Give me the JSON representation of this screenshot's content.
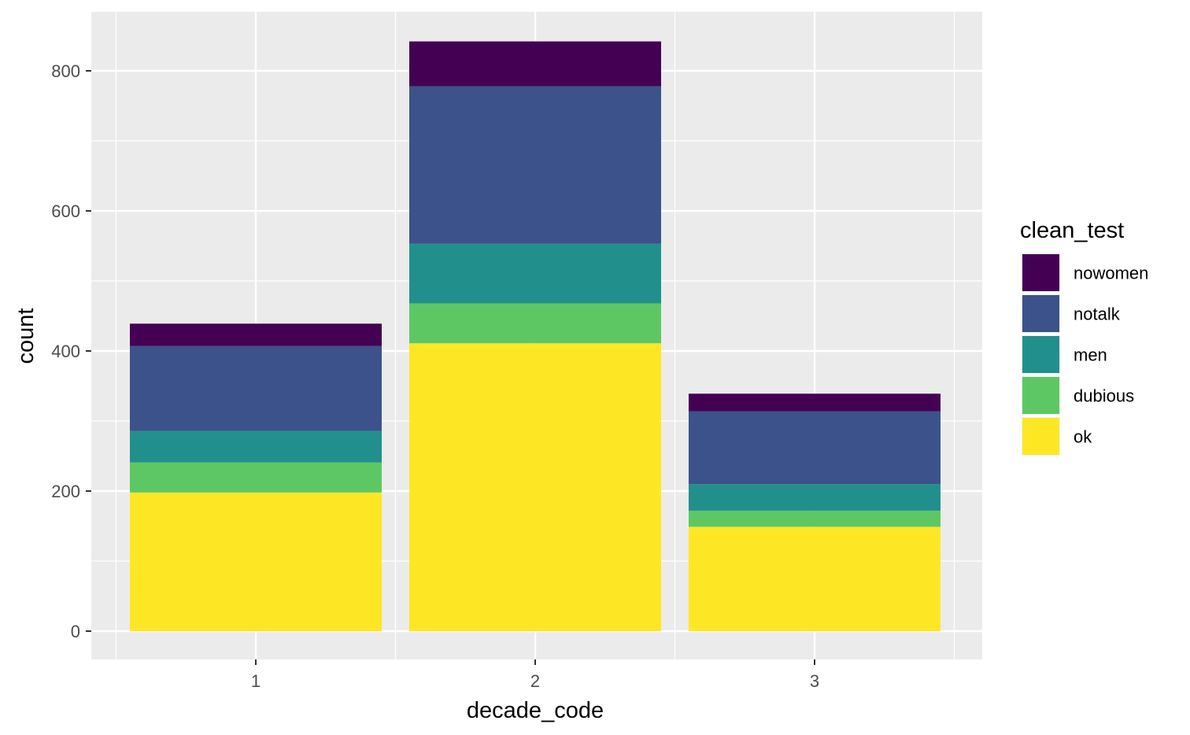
{
  "chart_data": {
    "type": "bar",
    "stacked": true,
    "xlabel": "decade_code",
    "ylabel": "count",
    "categories": [
      "1",
      "2",
      "3"
    ],
    "ylim": [
      0,
      880
    ],
    "y_ticks": [
      0,
      200,
      400,
      600,
      800
    ],
    "grid": true,
    "legend": {
      "title": "clean_test",
      "position": "right"
    },
    "series": [
      {
        "name": "ok",
        "color": "#FDE725",
        "values": [
          198,
          411,
          149
        ]
      },
      {
        "name": "dubious",
        "color": "#5DC863",
        "values": [
          43,
          57,
          23
        ]
      },
      {
        "name": "men",
        "color": "#21908C",
        "values": [
          45,
          85,
          38
        ]
      },
      {
        "name": "notalk",
        "color": "#3B528B",
        "values": [
          121,
          225,
          104
        ]
      },
      {
        "name": "nowomen",
        "color": "#440154",
        "values": [
          32,
          64,
          25
        ]
      }
    ],
    "legend_order": [
      "nowomen",
      "notalk",
      "men",
      "dubious",
      "ok"
    ],
    "panel_background": "#EBEBEB",
    "gridline_color": "#FFFFFF"
  }
}
